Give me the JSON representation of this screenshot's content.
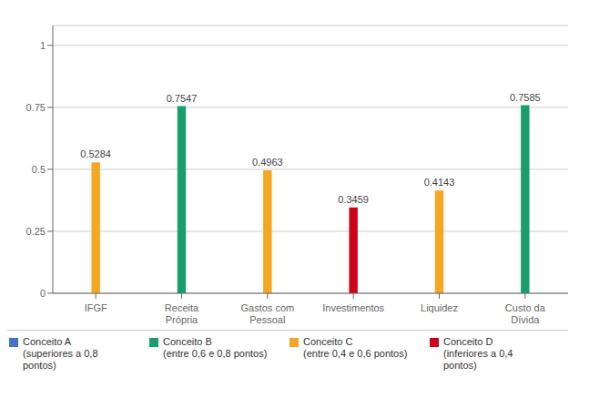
{
  "chart_data": {
    "type": "bar",
    "categories": [
      "IFGF",
      "Receita\nPrópria",
      "Gastos com\nPessoal",
      "Investimentos",
      "Liquidez",
      "Custo da\nDívida"
    ],
    "series": [
      {
        "name": "Conceito A\n(superiores a 0,8\npontos)",
        "color": "#4472C4",
        "values": [
          null,
          null,
          null,
          null,
          null,
          null
        ]
      },
      {
        "name": "Conceito B\n(entre 0,6 e 0,8 pontos)",
        "color": "#1A9E6E",
        "values": [
          null,
          0.7547,
          null,
          null,
          null,
          0.7585
        ]
      },
      {
        "name": "Conceito C\n(entre 0,4 e 0,6 pontos)",
        "color": "#F5A623",
        "values": [
          0.5284,
          null,
          0.4963,
          null,
          0.4143,
          null
        ]
      },
      {
        "name": "Conceito D\n(inferiores a 0,4\npontos)",
        "color": "#D0021B",
        "values": [
          null,
          null,
          null,
          0.3459,
          null,
          null
        ]
      }
    ],
    "stacked": true,
    "data_labels": true,
    "ylim": [
      0,
      1.08
    ],
    "yticks": [
      0,
      0.25,
      0.5,
      0.75,
      1
    ],
    "grid": true
  }
}
